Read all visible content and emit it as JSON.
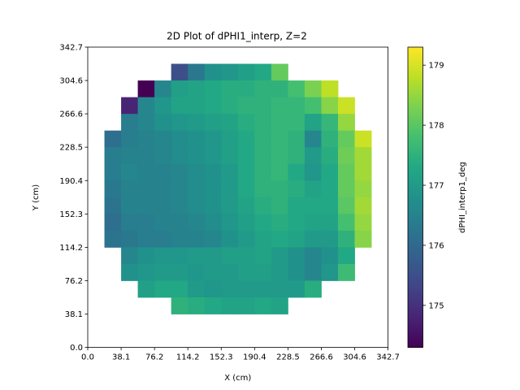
{
  "chart_data": {
    "type": "heatmap",
    "title": "2D Plot of dPHI1_interp, Z=2",
    "xlabel": "X (cm)",
    "ylabel": "Y (cm)",
    "xlim": [
      0.0,
      342.7
    ],
    "ylim": [
      0.0,
      342.7
    ],
    "xticks": [
      "0.0",
      "38.1",
      "76.2",
      "114.2",
      "152.3",
      "190.4",
      "228.5",
      "266.6",
      "304.6",
      "342.7"
    ],
    "yticks": [
      "0.0",
      "38.1",
      "76.2",
      "114.2",
      "152.3",
      "190.4",
      "228.5",
      "266.6",
      "304.6",
      "342.7"
    ],
    "colorbar": {
      "label": "dPHI_interp1_deg",
      "colormap": "viridis",
      "range": [
        174.3,
        179.3
      ],
      "ticks": [
        "175",
        "176",
        "177",
        "178",
        "179"
      ],
      "tick_values": [
        175,
        176,
        177,
        178,
        179
      ]
    },
    "grid_cols": 18,
    "grid_rows": 18,
    "cell_size_cm": 19.04,
    "rows_top_to_bottom": [
      [
        null,
        null,
        null,
        null,
        null,
        null,
        null,
        null,
        null,
        null,
        null,
        null,
        null,
        null,
        null,
        null,
        null,
        null
      ],
      [
        null,
        null,
        null,
        null,
        null,
        null,
        null,
        null,
        null,
        null,
        null,
        null,
        null,
        null,
        null,
        null,
        null,
        null
      ],
      [
        null,
        null,
        null,
        null,
        null,
        null,
        null,
        null,
        null,
        null,
        null,
        null,
        null,
        null,
        null,
        null,
        null,
        null
      ],
      [
        null,
        null,
        null,
        null,
        null,
        null,
        null,
        null,
        null,
        null,
        null,
        null,
        null,
        null,
        null,
        null,
        null,
        null
      ],
      [
        null,
        null,
        null,
        null,
        null,
        null,
        null,
        null,
        null,
        null,
        null,
        null,
        null,
        null,
        null,
        null,
        null,
        null
      ],
      [
        null,
        null,
        null,
        null,
        null,
        null,
        null,
        null,
        null,
        null,
        null,
        null,
        null,
        null,
        null,
        null,
        null,
        null
      ],
      [
        null,
        null,
        null,
        null,
        null,
        null,
        null,
        null,
        null,
        null,
        null,
        null,
        null,
        null,
        null,
        null,
        null,
        null
      ],
      [
        null,
        null,
        null,
        null,
        null,
        null,
        null,
        null,
        null,
        null,
        null,
        null,
        null,
        null,
        null,
        null,
        null,
        null
      ],
      [
        null,
        null,
        null,
        null,
        null,
        null,
        null,
        null,
        null,
        null,
        null,
        null,
        null,
        null,
        null,
        null,
        null,
        null
      ],
      [
        null,
        null,
        null,
        null,
        null,
        null,
        null,
        null,
        null,
        null,
        null,
        null,
        null,
        null,
        null,
        null,
        null,
        null
      ],
      [
        null,
        null,
        null,
        null,
        null,
        null,
        null,
        null,
        null,
        null,
        null,
        null,
        null,
        null,
        null,
        null,
        null,
        null
      ],
      [
        null,
        null,
        null,
        null,
        null,
        null,
        null,
        null,
        null,
        null,
        null,
        null,
        null,
        null,
        null,
        null,
        null,
        null
      ],
      [
        null,
        null,
        null,
        null,
        null,
        null,
        null,
        null,
        null,
        null,
        null,
        null,
        null,
        null,
        null,
        null,
        null,
        null
      ],
      [
        null,
        null,
        null,
        null,
        null,
        null,
        null,
        null,
        null,
        null,
        null,
        null,
        null,
        null,
        null,
        null,
        null,
        null
      ],
      [
        null,
        null,
        null,
        null,
        null,
        null,
        null,
        null,
        null,
        null,
        null,
        null,
        null,
        null,
        null,
        null,
        null,
        null
      ],
      [
        null,
        null,
        null,
        null,
        null,
        null,
        null,
        null,
        null,
        null,
        null,
        null,
        null,
        null,
        null,
        null,
        null,
        null
      ],
      [
        null,
        null,
        null,
        null,
        null,
        null,
        null,
        null,
        null,
        null,
        null,
        null,
        null,
        null,
        null,
        null,
        null,
        null
      ],
      [
        null,
        null,
        null,
        null,
        null,
        null,
        null,
        null,
        null,
        null,
        null,
        null,
        null,
        null,
        null,
        null,
        null,
        null
      ]
    ],
    "values_top_to_bottom": [
      [
        null,
        null,
        null,
        null,
        null,
        "175.5",
        "176.3",
        "176.8",
        "176.9",
        "177.1",
        "177.3",
        "178.1",
        null,
        null,
        null,
        null,
        null,
        null
      ],
      [
        null,
        null,
        null,
        "174.3",
        "176.6",
        "177.1",
        "177.2",
        "177.3",
        "177.4",
        "177.4",
        "177.5",
        "177.5",
        "177.8",
        "178.3",
        "178.8",
        null,
        null,
        null
      ],
      [
        null,
        null,
        "174.8",
        "176.6",
        "176.9",
        "177.2",
        "177.2",
        "177.3",
        "177.4",
        "177.5",
        "177.5",
        "177.6",
        "177.6",
        "177.8",
        "178.4",
        "178.9",
        null,
        null
      ],
      [
        null,
        null,
        "176.4",
        "176.6",
        "176.8",
        "176.9",
        "177.0",
        "177.1",
        "177.2",
        "177.4",
        "177.5",
        "177.6",
        "177.6",
        "177.2",
        "177.6",
        "178.5",
        null,
        null
      ],
      [
        null,
        "176.1",
        "176.4",
        "176.5",
        "176.6",
        "176.7",
        "176.8",
        "176.9",
        "177.1",
        "177.3",
        "177.5",
        "177.6",
        "177.5",
        "176.6",
        "177.5",
        "178.1",
        "178.9",
        null
      ],
      [
        null,
        "176.4",
        "176.5",
        "176.5",
        "176.6",
        "176.7",
        "176.8",
        "176.9",
        "177.1",
        "177.3",
        "177.5",
        "177.6",
        "177.5",
        "177.0",
        "177.4",
        "178.2",
        "178.6",
        null
      ],
      [
        null,
        "176.4",
        "176.6",
        "176.5",
        "176.5",
        "176.6",
        "176.7",
        "176.8",
        "177.0",
        "177.3",
        "177.5",
        "177.6",
        "177.3",
        "176.9",
        "177.3",
        "178.1",
        "178.6",
        null
      ],
      [
        null,
        "176.3",
        "176.5",
        "176.5",
        "176.5",
        "176.6",
        "176.7",
        "176.8",
        "177.0",
        "177.3",
        "177.5",
        "177.5",
        "177.4",
        "177.2",
        "177.3",
        "178.1",
        "178.5",
        null
      ],
      [
        null,
        "176.2",
        "176.5",
        "176.5",
        "176.5",
        "176.6",
        "176.7",
        "176.8",
        "177.0",
        "177.2",
        "177.4",
        "177.5",
        "177.3",
        "177.3",
        "177.3",
        "178.0",
        "178.6",
        null
      ],
      [
        null,
        "176.1",
        "176.4",
        "176.4",
        "176.5",
        "176.5",
        "176.6",
        "176.7",
        "176.9",
        "177.1",
        "177.3",
        "177.4",
        "177.3",
        "177.2",
        "177.2",
        "177.8",
        "178.5",
        null
      ],
      [
        null,
        "176.2",
        "176.3",
        "176.4",
        "176.4",
        "176.5",
        "176.5",
        "176.6",
        "176.8",
        "177.0",
        "177.2",
        "177.3",
        "177.2",
        "177.0",
        "177.0",
        "177.5",
        "178.4",
        null
      ],
      [
        null,
        null,
        "176.6",
        "176.8",
        "176.9",
        "176.9",
        "177.0",
        "177.0",
        "177.1",
        "177.1",
        "177.2",
        "177.0",
        "176.8",
        "176.6",
        "176.8",
        "177.3",
        null,
        null
      ],
      [
        null,
        null,
        "176.8",
        "176.9",
        "177.0",
        "177.0",
        "176.9",
        "177.0",
        "177.0",
        "177.1",
        "177.1",
        "177.0",
        "176.8",
        "176.6",
        "176.9",
        "177.7",
        null,
        null
      ],
      [
        null,
        null,
        null,
        "177.1",
        "177.3",
        "177.3",
        "177.0",
        "176.9",
        "177.0",
        "177.0",
        "177.0",
        "177.0",
        "177.0",
        "177.4",
        null,
        null,
        null,
        null
      ],
      [
        null,
        null,
        null,
        null,
        null,
        "177.5",
        "177.4",
        "177.3",
        "177.2",
        "177.2",
        "177.3",
        "177.2",
        null,
        null,
        null,
        null,
        null,
        null
      ],
      [
        null,
        null,
        null,
        null,
        null,
        null,
        null,
        null,
        null,
        null,
        null,
        null,
        null,
        null,
        null,
        null,
        null,
        null
      ],
      [
        null,
        null,
        null,
        null,
        null,
        null,
        null,
        null,
        null,
        null,
        null,
        null,
        null,
        null,
        null,
        null,
        null,
        null
      ],
      [
        null,
        null,
        null,
        null,
        null,
        null,
        null,
        null,
        null,
        null,
        null,
        null,
        null,
        null,
        null,
        null,
        null,
        null
      ]
    ]
  }
}
